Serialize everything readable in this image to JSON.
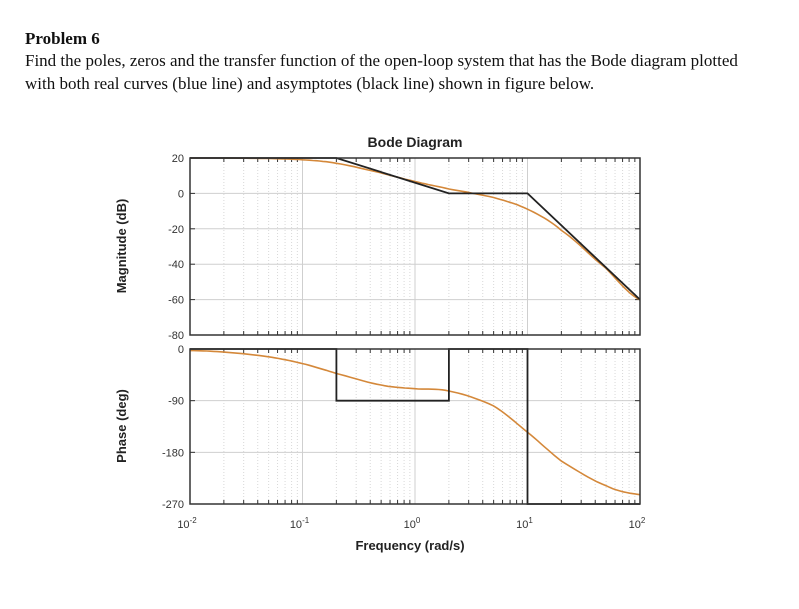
{
  "problem": {
    "title": "Problem 6",
    "line1": "Find the poles, zeros and the transfer function of the open-loop system that has the Bode diagram plotted",
    "line2": "with both real curves (blue line) and asymptotes (black line) shown in figure below."
  },
  "chart_data": {
    "type": "line",
    "title": "Bode Diagram",
    "xlabel": "Frequency  (rad/s)",
    "xscale": "log",
    "xlim": [
      0.01,
      100
    ],
    "x_ticks": [
      {
        "base": "10",
        "exp": "-2"
      },
      {
        "base": "10",
        "exp": "-1"
      },
      {
        "base": "10",
        "exp": "0"
      },
      {
        "base": "10",
        "exp": "1"
      },
      {
        "base": "10",
        "exp": "2"
      }
    ],
    "grid": true,
    "colors": {
      "real_curve": "#d4883a",
      "asymptote": "#222222",
      "grid": "#cfcfcf"
    },
    "magnitude": {
      "ylabel": "Magnitude (dB)",
      "ylim": [
        -80,
        20
      ],
      "y_ticks": [
        "20",
        "0",
        "-20",
        "-40",
        "-60",
        "-80"
      ],
      "real_curve": {
        "x": [
          0.01,
          0.02,
          0.05,
          0.1,
          0.2,
          0.5,
          1,
          2,
          5,
          10,
          20,
          50,
          100
        ],
        "y": [
          20,
          19.96,
          19.7,
          19.0,
          17.0,
          11.6,
          6.7,
          2.5,
          -2.3,
          -8.9,
          -20.9,
          -42.4,
          -60.1
        ]
      },
      "asymptote": {
        "x": [
          0.01,
          0.2,
          2,
          10,
          100
        ],
        "y": [
          20,
          20,
          0,
          0,
          -60
        ]
      }
    },
    "phase": {
      "ylabel": "Phase (deg)",
      "ylim": [
        -270,
        0
      ],
      "y_ticks": [
        "0",
        "-90",
        "-180",
        "-270"
      ],
      "real_curve": {
        "x": [
          0.01,
          0.02,
          0.05,
          0.1,
          0.2,
          0.5,
          1,
          2,
          5,
          10,
          20,
          50,
          100
        ],
        "y": [
          -2.7,
          -5.4,
          -13.5,
          -25.4,
          -42.7,
          -62.7,
          -69.2,
          -73.2,
          -99.2,
          -145,
          -195.3,
          -238.2,
          -253.8
        ]
      },
      "asymptote": {
        "x": [
          0.01,
          0.2,
          0.2,
          2,
          2,
          10,
          10,
          100
        ],
        "y": [
          0,
          0,
          -90,
          -90,
          0,
          0,
          -270,
          -270
        ]
      }
    }
  }
}
